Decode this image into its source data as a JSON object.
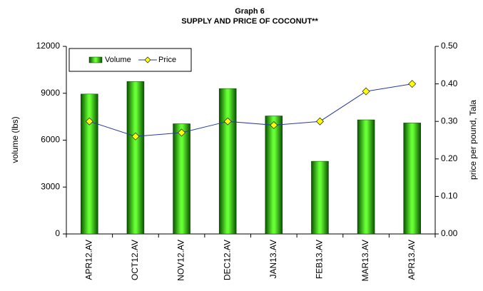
{
  "chart_data": {
    "type": "bar",
    "title": "Graph 6",
    "subtitle": "SUPPLY AND PRICE OF COCONUT**",
    "y_label": "volume (lbs)",
    "y2_label": "price per pound, Tala",
    "categories": [
      "APR12.AV",
      "OCT12.AV",
      "NOV12.AV",
      "DEC12.AV",
      "JAN13.AV",
      "FEB13.AV",
      "MAR13.AV",
      "APR13.AV"
    ],
    "series": [
      {
        "name": "Volume",
        "type": "bar",
        "color": "#33cc00",
        "values": [
          8950,
          9750,
          7050,
          9300,
          7550,
          4650,
          7300,
          7100
        ]
      },
      {
        "name": "Price",
        "type": "line",
        "axis": "y2",
        "color": "#2a3a9e",
        "marker_color": "#ffff00",
        "values": [
          0.3,
          0.26,
          0.27,
          0.3,
          0.29,
          0.3,
          0.38,
          0.4
        ]
      }
    ],
    "ylim": [
      0,
      12000
    ],
    "yticks": [
      0,
      3000,
      6000,
      9000,
      12000
    ],
    "y2lim": [
      0,
      0.5
    ],
    "y2ticks": [
      {
        "value": 0,
        "label": "0.00"
      },
      {
        "value": 0.1,
        "label": "0.10"
      },
      {
        "value": 0.2,
        "label": "0.20"
      },
      {
        "value": 0.3,
        "label": "0.30"
      },
      {
        "value": 0.4,
        "label": "0.40"
      },
      {
        "value": 0.5,
        "label": "0.50"
      }
    ],
    "grid": false,
    "legend": "top-left"
  }
}
